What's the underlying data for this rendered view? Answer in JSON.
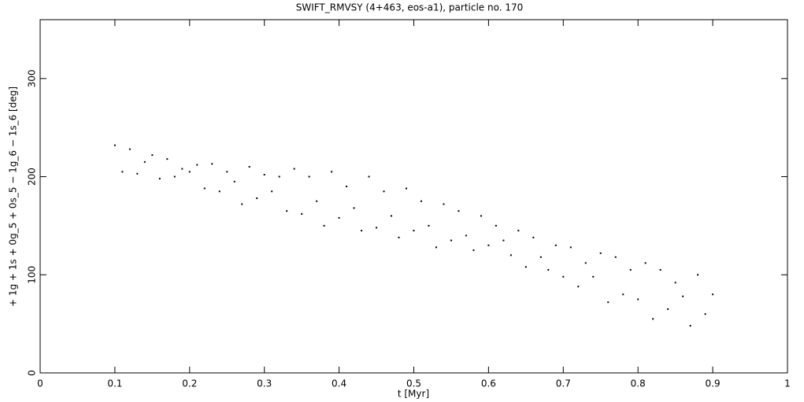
{
  "chart_data": {
    "type": "scatter",
    "title": "SWIFT_RMVSY (4+463, eos-a1), particle no. 170",
    "x_label": "t [Myr]",
    "y_label": "+ 1g + 1s + 0g_5 + 0s_5 − 1g_6 − 1s_6 [deg]",
    "xlim": [
      0,
      1
    ],
    "ylim": [
      0,
      360
    ],
    "xticks": [
      0,
      0.1,
      0.2,
      0.3,
      0.4,
      0.5,
      0.6,
      0.7,
      0.8,
      0.9,
      1
    ],
    "yticks": [
      0,
      100,
      200,
      300
    ],
    "color": "#000000",
    "x": [
      0.1,
      0.11,
      0.12,
      0.13,
      0.14,
      0.15,
      0.16,
      0.17,
      0.18,
      0.19,
      0.2,
      0.21,
      0.22,
      0.23,
      0.24,
      0.25,
      0.26,
      0.27,
      0.28,
      0.29,
      0.3,
      0.31,
      0.32,
      0.33,
      0.34,
      0.35,
      0.36,
      0.37,
      0.38,
      0.39,
      0.4,
      0.41,
      0.42,
      0.43,
      0.44,
      0.45,
      0.46,
      0.47,
      0.48,
      0.49,
      0.5,
      0.51,
      0.52,
      0.53,
      0.54,
      0.55,
      0.56,
      0.57,
      0.58,
      0.59,
      0.6,
      0.61,
      0.62,
      0.63,
      0.64,
      0.65,
      0.66,
      0.67,
      0.68,
      0.69,
      0.7,
      0.71,
      0.72,
      0.73,
      0.74,
      0.75,
      0.76,
      0.77,
      0.78,
      0.79,
      0.8,
      0.81,
      0.82,
      0.83,
      0.84,
      0.85,
      0.86,
      0.87,
      0.88,
      0.89,
      0.9
    ],
    "values": [
      232,
      205,
      228,
      203,
      215,
      222,
      198,
      218,
      200,
      208,
      205,
      212,
      188,
      213,
      185,
      205,
      195,
      172,
      210,
      178,
      202,
      185,
      200,
      165,
      208,
      162,
      200,
      175,
      150,
      205,
      158,
      190,
      168,
      145,
      200,
      148,
      185,
      160,
      138,
      188,
      145,
      175,
      150,
      128,
      172,
      135,
      165,
      140,
      125,
      160,
      130,
      150,
      135,
      120,
      145,
      108,
      138,
      118,
      105,
      130,
      98,
      128,
      88,
      112,
      98,
      122,
      72,
      118,
      80,
      105,
      75,
      112,
      55,
      105,
      65,
      92,
      78,
      48,
      100,
      60,
      80
    ]
  }
}
